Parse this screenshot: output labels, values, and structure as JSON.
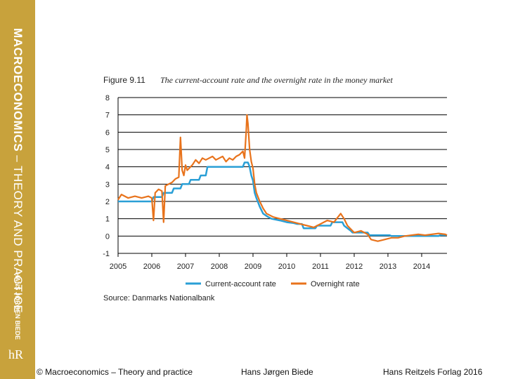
{
  "sidebar": {
    "book_title_bold": "MACROECONOMICS",
    "book_title_rest": " – THEORY AND PRACTICE",
    "author": "HANS JØRGEN BIEDE",
    "logo": "hR"
  },
  "figure": {
    "number": "Figure 9.11",
    "title": "The current-account rate and the overnight rate in the money market",
    "source": "Source: Danmarks Nationalbank"
  },
  "footer": {
    "left": "© Macroeconomics – Theory and practice",
    "center": "Hans Jørgen Biede",
    "right": "Hans Reitzels Forlag 2016"
  },
  "chart_data": {
    "type": "line",
    "title": "The current-account rate and the overnight rate in the money market",
    "xlabel": "",
    "ylabel": "",
    "xlim": [
      2005,
      2014.75
    ],
    "ylim": [
      -1,
      8
    ],
    "x_ticks": [
      "2005",
      "2006",
      "2007",
      "2008",
      "2009",
      "2010",
      "2011",
      "2012",
      "2013",
      "2014"
    ],
    "y_ticks": [
      "-1",
      "0",
      "1",
      "2",
      "3",
      "4",
      "5",
      "6",
      "7",
      "8"
    ],
    "grid": "horizontal",
    "legend_position": "bottom",
    "colors": {
      "current": "#2a9fd6",
      "overnight": "#e8731c"
    },
    "series": [
      {
        "name": "Current-account rate",
        "x": [
          2005.0,
          2006.0,
          2006.05,
          2006.3,
          2006.35,
          2006.6,
          2006.65,
          2006.85,
          2006.9,
          2007.1,
          2007.15,
          2007.4,
          2007.45,
          2007.6,
          2007.65,
          2008.7,
          2008.75,
          2008.85,
          2008.9,
          2008.95,
          2009.0,
          2009.05,
          2009.1,
          2009.2,
          2009.3,
          2009.45,
          2009.55,
          2009.8,
          2010.0,
          2010.2,
          2010.3,
          2010.45,
          2010.5,
          2010.85,
          2010.9,
          2011.3,
          2011.35,
          2011.65,
          2011.7,
          2011.8,
          2011.9,
          2011.95,
          2012.0,
          2012.4,
          2012.45,
          2013.05,
          2013.1,
          2014.5,
          2014.55,
          2014.75
        ],
        "y": [
          2.0,
          2.0,
          2.25,
          2.25,
          2.5,
          2.5,
          2.75,
          2.75,
          3.0,
          3.0,
          3.25,
          3.25,
          3.5,
          3.5,
          4.0,
          4.0,
          4.25,
          4.25,
          4.0,
          3.5,
          3.2,
          2.5,
          2.2,
          1.7,
          1.3,
          1.1,
          1.0,
          0.9,
          0.8,
          0.75,
          0.7,
          0.7,
          0.45,
          0.45,
          0.6,
          0.6,
          0.8,
          0.8,
          0.6,
          0.45,
          0.3,
          0.2,
          0.2,
          0.2,
          0.05,
          0.05,
          0.0,
          0.0,
          0.05,
          0.05
        ]
      },
      {
        "name": "Overnight rate",
        "x": [
          2005.0,
          2005.1,
          2005.3,
          2005.5,
          2005.7,
          2005.9,
          2006.0,
          2006.05,
          2006.1,
          2006.2,
          2006.3,
          2006.35,
          2006.4,
          2006.5,
          2006.6,
          2006.7,
          2006.8,
          2006.85,
          2006.9,
          2006.95,
          2007.0,
          2007.05,
          2007.1,
          2007.2,
          2007.3,
          2007.4,
          2007.5,
          2007.6,
          2007.7,
          2007.8,
          2007.9,
          2008.0,
          2008.1,
          2008.2,
          2008.3,
          2008.4,
          2008.5,
          2008.6,
          2008.7,
          2008.75,
          2008.8,
          2008.82,
          2008.85,
          2008.9,
          2008.95,
          2009.0,
          2009.05,
          2009.1,
          2009.2,
          2009.3,
          2009.4,
          2009.5,
          2009.6,
          2009.8,
          2010.0,
          2010.2,
          2010.4,
          2010.6,
          2010.8,
          2011.0,
          2011.2,
          2011.4,
          2011.6,
          2011.7,
          2011.8,
          2011.9,
          2012.0,
          2012.2,
          2012.4,
          2012.5,
          2012.7,
          2012.9,
          2013.1,
          2013.3,
          2013.5,
          2013.7,
          2013.9,
          2014.1,
          2014.3,
          2014.5,
          2014.7,
          2014.75
        ],
        "y": [
          2.1,
          2.4,
          2.2,
          2.3,
          2.2,
          2.3,
          2.2,
          0.9,
          2.5,
          2.7,
          2.6,
          0.8,
          2.9,
          3.0,
          3.1,
          3.3,
          3.4,
          5.7,
          3.8,
          3.5,
          4.1,
          3.8,
          3.9,
          4.1,
          4.4,
          4.2,
          4.5,
          4.4,
          4.5,
          4.6,
          4.4,
          4.5,
          4.6,
          4.3,
          4.5,
          4.4,
          4.6,
          4.7,
          4.9,
          4.5,
          6.1,
          7.0,
          6.5,
          5.0,
          4.3,
          3.9,
          3.0,
          2.5,
          2.0,
          1.6,
          1.3,
          1.2,
          1.1,
          1.0,
          0.9,
          0.8,
          0.7,
          0.6,
          0.5,
          0.7,
          0.9,
          0.8,
          1.3,
          1.0,
          0.6,
          0.4,
          0.2,
          0.3,
          0.1,
          -0.2,
          -0.3,
          -0.2,
          -0.1,
          -0.1,
          0.0,
          0.05,
          0.1,
          0.05,
          0.1,
          0.15,
          0.1,
          0.05
        ]
      }
    ]
  }
}
